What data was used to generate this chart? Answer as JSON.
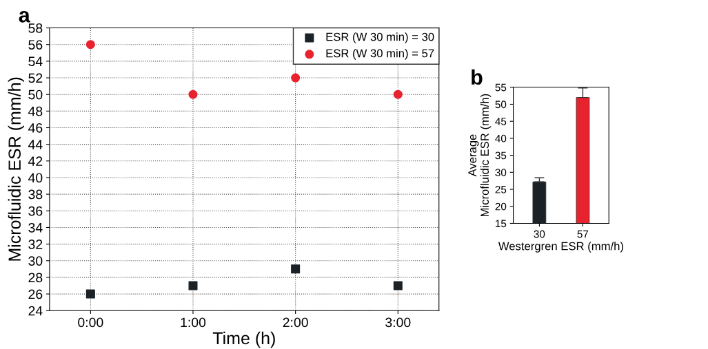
{
  "chart_data": [
    {
      "type": "scatter",
      "title": "a",
      "xlabel": "Time (h)",
      "ylabel": "Microfluidic ESR (mm/h)",
      "x": [
        0,
        1,
        2,
        3
      ],
      "series": [
        {
          "name": "ESR (W 30 min) = 30",
          "color": "#1a2228",
          "marker": "square",
          "values": [
            26,
            27,
            29,
            27
          ]
        },
        {
          "name": "ESR (W 30 min) = 57",
          "color": "#e8222e",
          "marker": "circle",
          "values": [
            56,
            50,
            52,
            50
          ]
        }
      ],
      "xlim": [
        -0.4,
        3.4
      ],
      "xticks": [
        {
          "value": 0,
          "label": "0:00"
        },
        {
          "value": 1,
          "label": "1:00"
        },
        {
          "value": 2,
          "label": "2:00"
        },
        {
          "value": 3,
          "label": "3:00"
        }
      ],
      "ylim": [
        24,
        58
      ],
      "yticks": [
        24,
        26,
        28,
        30,
        32,
        34,
        36,
        38,
        40,
        42,
        44,
        46,
        48,
        50,
        52,
        54,
        56,
        58
      ],
      "grid": true,
      "legend": "top right"
    },
    {
      "type": "bar",
      "title": "b",
      "xlabel": "Westergren ESR (mm/h)",
      "ylabel": "Average\nMicrofluidic ESR (mm/h)",
      "categories": [
        "30",
        "57"
      ],
      "values": [
        27.2,
        52
      ],
      "colors": [
        "#1a2228",
        "#e8222e"
      ],
      "errors": [
        [
          27.2,
          28.4
        ],
        [
          52,
          54.8
        ]
      ],
      "ylim": [
        15,
        55
      ],
      "yticks": [
        15,
        20,
        25,
        30,
        35,
        40,
        45,
        50,
        55
      ]
    }
  ]
}
